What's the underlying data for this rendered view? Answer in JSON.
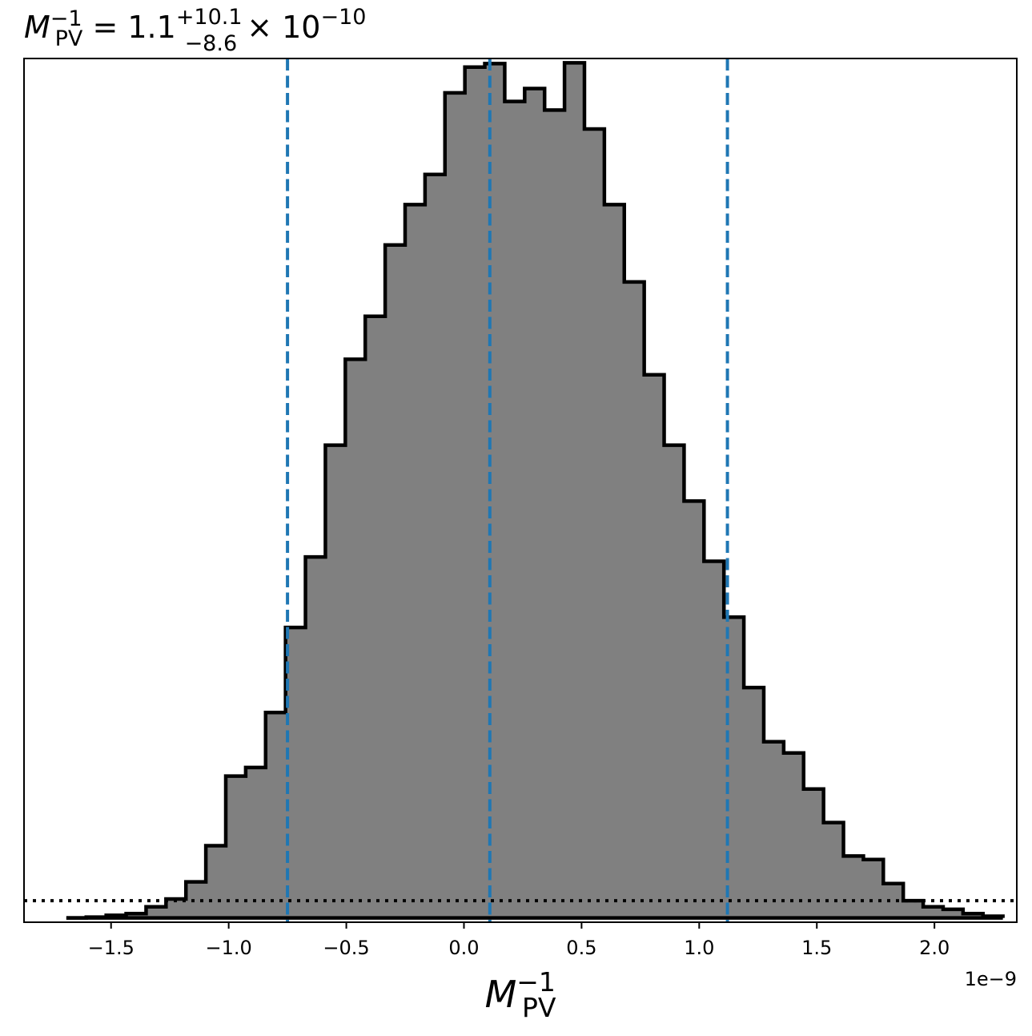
{
  "chart_data": {
    "type": "histogram",
    "title": {
      "symbol": "M",
      "subscript": "PV",
      "superscript": "−1",
      "equals": " = ",
      "value": "1.1",
      "upper": "+10.1",
      "lower": "−8.6",
      "times": " × 10",
      "exponent": "−10"
    },
    "xlabel": {
      "symbol": "M",
      "subscript": "PV",
      "superscript": "−1"
    },
    "offset_text": "1e−9",
    "xlim": [
      -1.87e-09,
      2.35e-09
    ],
    "ylim": [
      -5,
      1000
    ],
    "x_ticks": [
      -1.5e-09,
      -1e-09,
      -5e-10,
      0.0,
      5e-10,
      1e-09,
      1.5e-09,
      2e-09
    ],
    "x_tick_labels": [
      "−1.5",
      "−1.0",
      "−0.5",
      "0.0",
      "0.5",
      "1.0",
      "1.5",
      "2.0"
    ],
    "bin_start": -1.69e-09,
    "bin_width": 8.47e-11,
    "counts": [
      0,
      1,
      3,
      5,
      13,
      22,
      42,
      84,
      165,
      175,
      239,
      338,
      420,
      550,
      650,
      700,
      783,
      830,
      865,
      960,
      990,
      994,
      950,
      965,
      940,
      995,
      918,
      830,
      740,
      632,
      550,
      485,
      415,
      350,
      268,
      205,
      192,
      150,
      111,
      72,
      68,
      40,
      20,
      13,
      10,
      5,
      2
    ],
    "fill_color": "#808080",
    "edge_color": "#000000",
    "vlines": {
      "values": [
        -7.5e-10,
        1.1e-10,
        1.12e-09
      ],
      "color": "#1f77b4",
      "style": "dashed"
    },
    "hline": {
      "value": 20,
      "color": "#000000",
      "style": "dotted"
    },
    "y_ticks_visible": false,
    "grid": false
  }
}
